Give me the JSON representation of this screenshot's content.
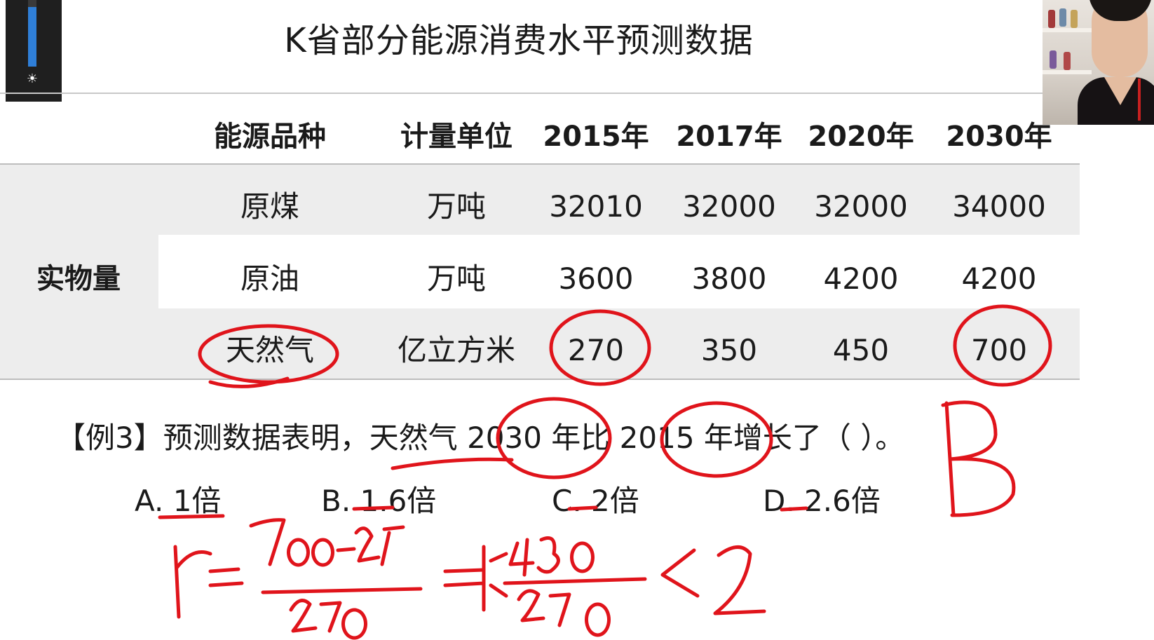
{
  "title": "K省部分能源消费水平预测数据",
  "brightness_level": 0.9,
  "table": {
    "headers": [
      "能源品种",
      "计量单位",
      "2015年",
      "2017年",
      "2020年",
      "2030年"
    ],
    "group_label": "实物量",
    "rows": [
      {
        "name": "原煤",
        "unit": "万吨",
        "values": [
          "32010",
          "32000",
          "32000",
          "34000"
        ]
      },
      {
        "name": "原油",
        "unit": "万吨",
        "values": [
          "3600",
          "3800",
          "4200",
          "4200"
        ]
      },
      {
        "name": "天然气",
        "unit": "亿立方米",
        "values": [
          "270",
          "350",
          "450",
          "700"
        ]
      }
    ]
  },
  "question": {
    "text": "【例3】预测数据表明，天然气 2030 年比 2015 年增长了（     ）。",
    "options": [
      "A. 1倍",
      "B. 1.6倍",
      "C. 2倍",
      "D. 2.6倍"
    ]
  },
  "annotation_color": "#e0141b"
}
